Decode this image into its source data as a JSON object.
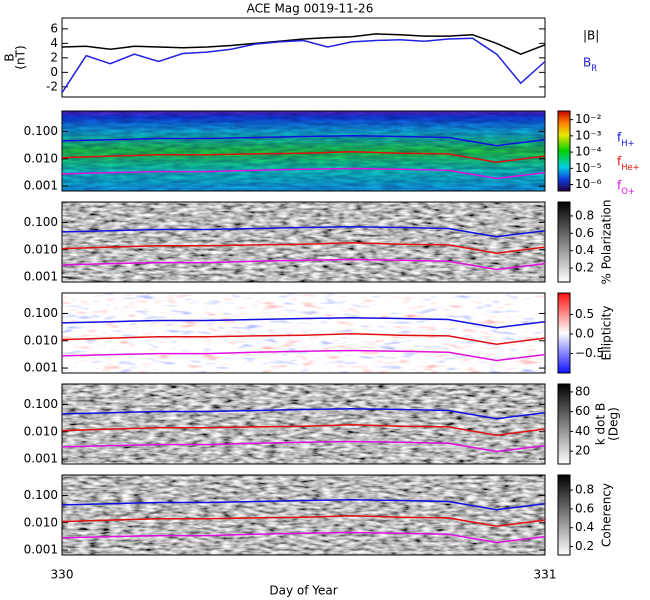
{
  "chart_data": [
    {
      "type": "line",
      "title": "ACE Mag 0019-11-26",
      "ylabel": [
        "B",
        "(nT)"
      ],
      "x": [
        330,
        330.05,
        330.1,
        330.15,
        330.2,
        330.25,
        330.3,
        330.35,
        330.4,
        330.45,
        330.5,
        330.55,
        330.6,
        330.65,
        330.7,
        330.75,
        330.8,
        330.85,
        330.9,
        330.95,
        331
      ],
      "xlim": [
        330,
        331
      ],
      "ylim": [
        -3.4,
        7.5
      ],
      "yticks": [
        -2,
        0,
        2,
        4,
        6
      ],
      "legend": true,
      "series": [
        {
          "name": "|B|",
          "color": "#000000",
          "values": [
            3.5,
            3.6,
            3.2,
            3.6,
            3.5,
            3.4,
            3.5,
            3.7,
            4.0,
            4.3,
            4.6,
            4.8,
            4.9,
            5.3,
            5.2,
            5.0,
            5.0,
            5.2,
            4.0,
            2.5,
            3.8
          ]
        },
        {
          "name": "B_R",
          "color": "#2020e0",
          "values": [
            -2.8,
            2.3,
            1.2,
            2.5,
            1.5,
            2.6,
            2.8,
            3.2,
            3.9,
            4.2,
            4.4,
            3.5,
            4.2,
            4.4,
            4.5,
            4.3,
            4.6,
            4.7,
            2.5,
            -1.5,
            1.5
          ]
        }
      ]
    },
    {
      "type": "spectrogram",
      "colormap": "rainbow",
      "log_y": true,
      "legend": true,
      "x": [
        330,
        330.1,
        330.2,
        330.3,
        330.4,
        330.5,
        330.6,
        330.7,
        330.8,
        330.9,
        331
      ],
      "xlim": [
        330,
        331
      ],
      "ylim": [
        0.00066,
        0.56
      ],
      "yticks": [
        0.001,
        {
          "value": 0.01,
          "label": "0.010"
        },
        {
          "value": 0.1,
          "label": "0.100"
        }
      ],
      "colorbar": {
        "log": true,
        "lim": [
          4e-07,
          0.034
        ],
        "ticks": [
          {
            "value": 0.01,
            "label": "10⁻²"
          },
          {
            "value": 0.001,
            "label": "10⁻³"
          },
          {
            "value": 0.0001,
            "label": "10⁻⁴"
          },
          {
            "value": 1e-05,
            "label": "10⁻⁵"
          },
          {
            "value": 1e-06,
            "label": "10⁻⁶"
          }
        ]
      },
      "series": [
        {
          "name": "f_H+",
          "color": "#1010e0",
          "values": [
            0.045,
            0.05,
            0.055,
            0.055,
            0.06,
            0.065,
            0.07,
            0.065,
            0.06,
            0.03,
            0.05
          ]
        },
        {
          "name": "f_He+",
          "color": "#e01010",
          "values": [
            0.011,
            0.0125,
            0.014,
            0.014,
            0.015,
            0.016,
            0.018,
            0.016,
            0.015,
            0.0075,
            0.0125
          ]
        },
        {
          "name": "f_O+",
          "color": "#e010e0",
          "values": [
            0.0028,
            0.0031,
            0.0034,
            0.0034,
            0.0038,
            0.0041,
            0.0044,
            0.0041,
            0.0038,
            0.0019,
            0.0031
          ]
        }
      ]
    },
    {
      "type": "spectrogram",
      "colormap": "gray",
      "log_y": true,
      "x": [
        330,
        330.1,
        330.2,
        330.3,
        330.4,
        330.5,
        330.6,
        330.7,
        330.8,
        330.9,
        331
      ],
      "xlim": [
        330,
        331
      ],
      "ylim": [
        0.00066,
        0.56
      ],
      "yticks": [
        0.001,
        {
          "value": 0.01,
          "label": "0.010"
        },
        {
          "value": 0.1,
          "label": "0.100"
        }
      ],
      "colorbar": {
        "label": "% Polarization",
        "lim": [
          0.04,
          0.96
        ],
        "ticks": [
          0.2,
          0.4,
          0.6,
          0.8
        ]
      },
      "series": [
        {
          "color": "#1010e0",
          "values": [
            0.045,
            0.05,
            0.055,
            0.055,
            0.06,
            0.065,
            0.07,
            0.065,
            0.06,
            0.03,
            0.05
          ]
        },
        {
          "color": "#e01010",
          "values": [
            0.011,
            0.0125,
            0.014,
            0.014,
            0.015,
            0.016,
            0.018,
            0.016,
            0.015,
            0.0075,
            0.0125
          ]
        },
        {
          "color": "#e010e0",
          "values": [
            0.0028,
            0.0031,
            0.0034,
            0.0034,
            0.0038,
            0.0041,
            0.0044,
            0.0041,
            0.0038,
            0.0019,
            0.0031
          ]
        }
      ]
    },
    {
      "type": "spectrogram",
      "colormap": "bwr",
      "log_y": true,
      "x": [
        330,
        330.1,
        330.2,
        330.3,
        330.4,
        330.5,
        330.6,
        330.7,
        330.8,
        330.9,
        331
      ],
      "xlim": [
        330,
        331
      ],
      "ylim": [
        0.00066,
        0.56
      ],
      "yticks": [
        0.001,
        {
          "value": 0.01,
          "label": "0.010"
        },
        {
          "value": 0.1,
          "label": "0.100"
        }
      ],
      "colorbar": {
        "label": "Ellipticity",
        "lim": [
          -1.0,
          1.05
        ],
        "ticks": [
          {
            "value": -0.5,
            "label": "−0.5"
          },
          {
            "value": 0,
            "label": "0.0"
          },
          0.5
        ]
      },
      "series": [
        {
          "color": "#1010e0",
          "values": [
            0.045,
            0.05,
            0.055,
            0.055,
            0.06,
            0.065,
            0.07,
            0.065,
            0.06,
            0.03,
            0.05
          ]
        },
        {
          "color": "#e01010",
          "values": [
            0.011,
            0.0125,
            0.014,
            0.014,
            0.015,
            0.016,
            0.018,
            0.016,
            0.015,
            0.0075,
            0.0125
          ]
        },
        {
          "color": "#e010e0",
          "values": [
            0.0028,
            0.0031,
            0.0034,
            0.0034,
            0.0038,
            0.0041,
            0.0044,
            0.0041,
            0.0038,
            0.0019,
            0.0031
          ]
        }
      ]
    },
    {
      "type": "spectrogram",
      "colormap": "gray",
      "log_y": true,
      "x": [
        330,
        330.1,
        330.2,
        330.3,
        330.4,
        330.5,
        330.6,
        330.7,
        330.8,
        330.9,
        331
      ],
      "xlim": [
        330,
        331
      ],
      "ylim": [
        0.00066,
        0.56
      ],
      "yticks": [
        0.001,
        {
          "value": 0.01,
          "label": "0.010"
        },
        {
          "value": 0.1,
          "label": "0.100"
        }
      ],
      "colorbar": {
        "label": [
          "k dot B",
          "(Deg)"
        ],
        "lim": [
          7,
          88
        ],
        "ticks": [
          20,
          40,
          60,
          80
        ]
      },
      "series": [
        {
          "color": "#1010e0",
          "values": [
            0.045,
            0.05,
            0.055,
            0.055,
            0.06,
            0.065,
            0.07,
            0.065,
            0.06,
            0.03,
            0.05
          ]
        },
        {
          "color": "#e01010",
          "values": [
            0.011,
            0.0125,
            0.014,
            0.014,
            0.015,
            0.016,
            0.018,
            0.016,
            0.015,
            0.0075,
            0.0125
          ]
        },
        {
          "color": "#e010e0",
          "values": [
            0.0028,
            0.0031,
            0.0034,
            0.0034,
            0.0038,
            0.0041,
            0.0044,
            0.0041,
            0.0038,
            0.0019,
            0.0031
          ]
        }
      ]
    },
    {
      "type": "spectrogram",
      "colormap": "gray",
      "log_y": true,
      "xlabel": "Day of Year",
      "xticks": [
        330,
        331
      ],
      "x": [
        330,
        330.1,
        330.2,
        330.3,
        330.4,
        330.5,
        330.6,
        330.7,
        330.8,
        330.9,
        331
      ],
      "xlim": [
        330,
        331
      ],
      "ylim": [
        0.00066,
        0.56
      ],
      "yticks": [
        0.001,
        {
          "value": 0.01,
          "label": "0.010"
        },
        {
          "value": 0.1,
          "label": "0.100"
        }
      ],
      "colorbar": {
        "label": "Coherency",
        "lim": [
          0.11,
          0.96
        ],
        "ticks": [
          0.2,
          0.4,
          0.6,
          0.8
        ]
      },
      "series": [
        {
          "color": "#1010e0",
          "values": [
            0.045,
            0.05,
            0.055,
            0.055,
            0.06,
            0.065,
            0.07,
            0.065,
            0.06,
            0.03,
            0.05
          ]
        },
        {
          "color": "#e01010",
          "values": [
            0.011,
            0.0125,
            0.014,
            0.014,
            0.015,
            0.016,
            0.018,
            0.016,
            0.015,
            0.0075,
            0.0125
          ]
        },
        {
          "color": "#e010e0",
          "values": [
            0.0028,
            0.0031,
            0.0034,
            0.0034,
            0.0038,
            0.0041,
            0.0044,
            0.0041,
            0.0038,
            0.0019,
            0.0031
          ]
        }
      ]
    }
  ]
}
